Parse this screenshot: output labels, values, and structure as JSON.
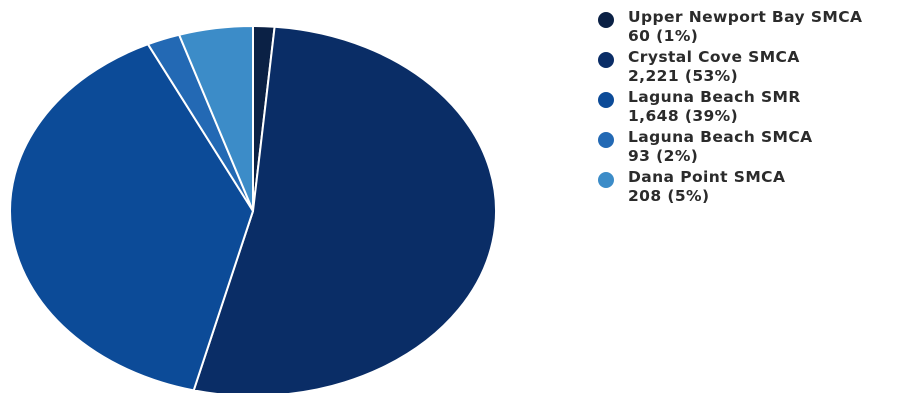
{
  "chart_data": {
    "type": "pie",
    "slices": [
      {
        "name": "Upper Newport Bay SMCA",
        "value": 60,
        "value_label": "60",
        "percent_label": "1%",
        "color": "#0b2145"
      },
      {
        "name": "Crystal Cove SMCA",
        "value": 2221,
        "value_label": "2,221",
        "percent_label": "53%",
        "color": "#0a2d66"
      },
      {
        "name": "Laguna Beach SMR",
        "value": 1648,
        "value_label": "1,648",
        "percent_label": "39%",
        "color": "#0c4b98"
      },
      {
        "name": "Laguna Beach SMCA",
        "value": 93,
        "value_label": "93",
        "percent_label": "2%",
        "color": "#2369b4"
      },
      {
        "name": "Dana Point SMCA",
        "value": 208,
        "value_label": "208",
        "percent_label": "5%",
        "color": "#3c8cc8"
      }
    ],
    "start_angle_deg": 0,
    "direction": "clockwise",
    "legend_position": "right"
  }
}
